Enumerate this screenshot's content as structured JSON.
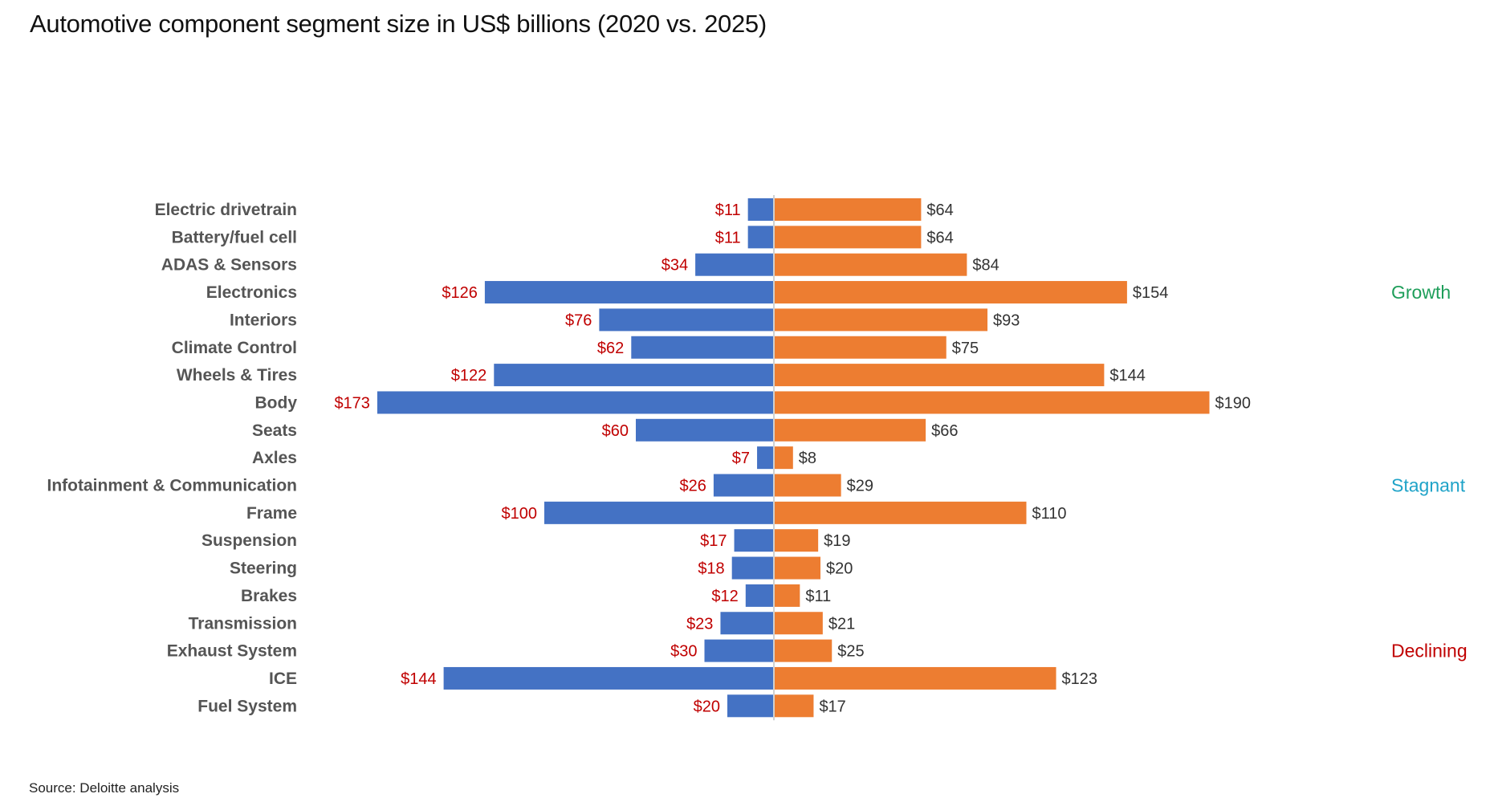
{
  "title": "Automotive component segment size in US$ billions (2020 vs. 2025)",
  "source": "Source: Deloitte analysis",
  "colors": {
    "bar_2020": "#4472C4",
    "bar_2025": "#ED7D31",
    "label_2020": "#C00000",
    "label_2025": "#333333",
    "category_text": "#555555",
    "axis_line": "#D0D0D0"
  },
  "chart_data": {
    "type": "bar",
    "orientation": "horizontal-diverging",
    "title": "Automotive component segment size in US$ billions (2020 vs. 2025)",
    "xlabel": "",
    "ylabel": "",
    "grid": false,
    "legend": "none",
    "value_prefix": "$",
    "categories": [
      "Electric drivetrain",
      "Battery/fuel cell",
      "ADAS & Sensors",
      "Electronics",
      "Interiors",
      "Climate Control",
      "Wheels & Tires",
      "Body",
      "Seats",
      "Axles",
      "Infotainment & Communication",
      "Frame",
      "Suspension",
      "Steering",
      "Brakes",
      "Transmission",
      "Exhaust System",
      "ICE",
      "Fuel System"
    ],
    "series": [
      {
        "name": "2020",
        "side": "left",
        "values": [
          11,
          11,
          34,
          126,
          76,
          62,
          122,
          173,
          60,
          7,
          26,
          100,
          17,
          18,
          12,
          23,
          30,
          144,
          20
        ],
        "labels": [
          "$11",
          "$11",
          "$34",
          "$126",
          "$76",
          "$62",
          "$122",
          "$173",
          "$60",
          "$7",
          "$26",
          "$100",
          "$17",
          "$18",
          "$12",
          "$23",
          "$30",
          "$144",
          "$20"
        ]
      },
      {
        "name": "2025",
        "side": "right",
        "values": [
          64,
          64,
          84,
          154,
          93,
          75,
          144,
          190,
          66,
          8,
          29,
          110,
          19,
          20,
          11,
          21,
          25,
          123,
          17
        ],
        "labels": [
          "$64",
          "$64",
          "$84",
          "$154",
          "$93",
          "$75",
          "$144",
          "$190",
          "$66",
          "$8",
          "$29",
          "$110",
          "$19",
          "$20",
          "$11",
          "$21",
          "$25",
          "$123",
          "$17"
        ]
      }
    ],
    "xlim": [
      -200,
      200
    ],
    "annotations": [
      {
        "text": "Growth",
        "color": "#1E9E5A",
        "beside_category": "Electronics"
      },
      {
        "text": "Stagnant",
        "color": "#1FA3C8",
        "beside_category": "Infotainment & Communication"
      },
      {
        "text": "Declining",
        "color": "#C00000",
        "beside_category": "Exhaust System"
      }
    ]
  }
}
